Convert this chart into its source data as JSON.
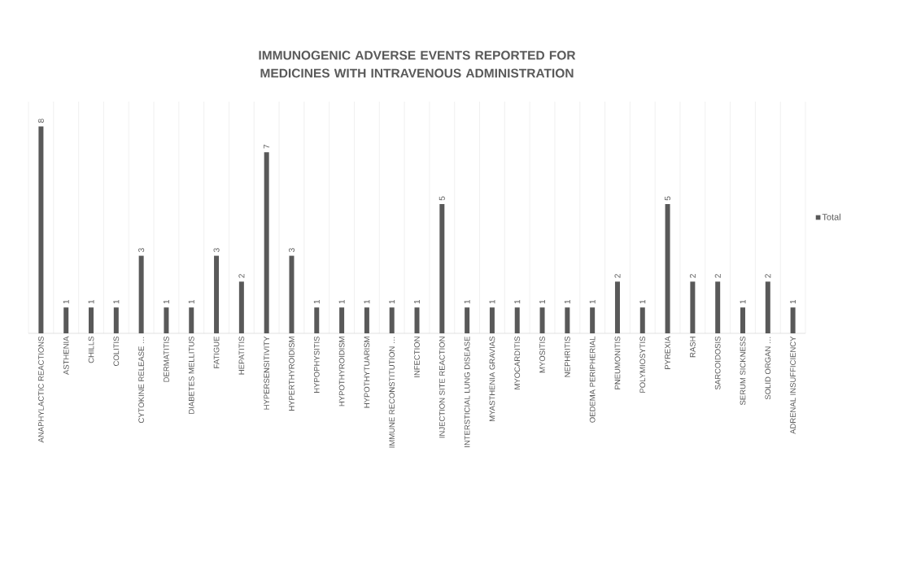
{
  "chart_data": {
    "type": "bar",
    "title": "IMMUNOGENIC ADVERSE EVENTS REPORTED FOR MEDICINES WITH INTRAVENOUS ADMINISTRATION",
    "categories": [
      "ANAPHYLACTIC REACTIONS",
      "ASTHENIA",
      "CHILLS",
      "COLITIS",
      "CYTOKINE RELEASE …",
      "DERMATITIS",
      "DIABETES MELLITUS",
      "FATIGUE",
      "HEPATITIS",
      "HYPERSENSITIVITY",
      "HYPERTHYROIDISM",
      "HYPOPHYSITIS",
      "HYPOTHYROIDISM",
      "HYPOTHYTUARISM",
      "IMMUNE RECONSTITUTION …",
      "INFECTION",
      "INJECTION SITE REACTION",
      "INTERSTICIAL LUNG DISEASE",
      "MYASTHENIA GRAVIAS",
      "MYOCARDITIS",
      "MYOSITIS",
      "NEPHRITIS",
      "OEDEMA PERIPHERIAL",
      "PNEUMONITIS",
      "POLYMIOSYTIS",
      "PYREXIA",
      "RASH",
      "SARCOIDOSIS",
      "SERUM SICKNESS",
      "SOLID ORGAN …",
      "ADRENAL INSUFFICIENCY"
    ],
    "series": [
      {
        "name": "Total",
        "color": "#595959",
        "values": [
          8,
          1,
          1,
          1,
          3,
          1,
          1,
          3,
          2,
          7,
          3,
          1,
          1,
          1,
          1,
          1,
          5,
          1,
          1,
          1,
          1,
          1,
          1,
          2,
          1,
          5,
          2,
          2,
          1,
          2,
          1
        ]
      }
    ],
    "data_labels": true,
    "grid": "x",
    "legend": "right",
    "tick_labels": "x"
  }
}
